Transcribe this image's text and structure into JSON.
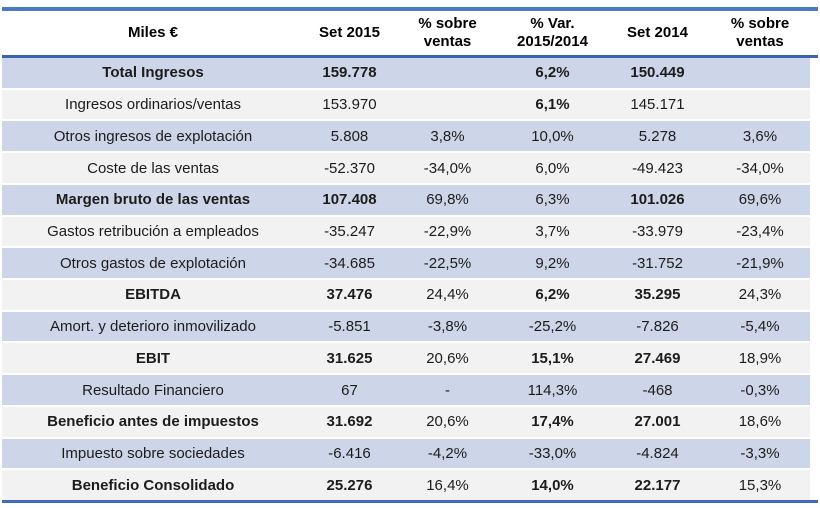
{
  "table": {
    "title_note": "Miles €",
    "columns": [
      "Miles €",
      "Set 2015",
      "% sobre ventas",
      "% Var. 2015/2014",
      "Set 2014",
      "% sobre ventas"
    ],
    "rows": [
      {
        "cells": [
          "Total Ingresos",
          "159.778",
          "",
          "6,2%",
          "150.449",
          ""
        ]
      },
      {
        "cells": [
          "Ingresos ordinarios/ventas",
          "153.970",
          "",
          "6,1%",
          "145.171",
          ""
        ]
      },
      {
        "cells": [
          "Otros ingresos de explotación",
          "5.808",
          "3,8%",
          "10,0%",
          "5.278",
          "3,6%"
        ]
      },
      {
        "cells": [
          "Coste de las ventas",
          "-52.370",
          "-34,0%",
          "6,0%",
          "-49.423",
          "-34,0%"
        ]
      },
      {
        "cells": [
          "Margen bruto de las ventas",
          "107.408",
          "69,8%",
          "6,3%",
          "101.026",
          "69,6%"
        ]
      },
      {
        "cells": [
          "Gastos retribución a empleados",
          "-35.247",
          "-22,9%",
          "3,7%",
          "-33.979",
          "-23,4%"
        ]
      },
      {
        "cells": [
          "Otros gastos de explotación",
          "-34.685",
          "-22,5%",
          "9,2%",
          "-31.752",
          "-21,9%"
        ]
      },
      {
        "cells": [
          "EBITDA",
          "37.476",
          "24,4%",
          "6,2%",
          "35.295",
          "24,3%"
        ]
      },
      {
        "cells": [
          "Amort. y deterioro inmovilizado",
          "-5.851",
          "-3,8%",
          "-25,2%",
          "-7.826",
          "-5,4%"
        ]
      },
      {
        "cells": [
          "EBIT",
          "31.625",
          "20,6%",
          "15,1%",
          "27.469",
          "18,9%"
        ]
      },
      {
        "cells": [
          "Resultado Financiero",
          "67",
          "-",
          "114,3%",
          "-468",
          "-0,3%"
        ]
      },
      {
        "cells": [
          "Beneficio antes de impuestos",
          "31.692",
          "20,6%",
          "17,4%",
          "27.001",
          "18,6%"
        ]
      },
      {
        "cells": [
          "Impuesto sobre sociedades",
          "-6.416",
          "-4,2%",
          "-33,0%",
          "-4.824",
          "-3,3%"
        ]
      },
      {
        "cells": [
          "Beneficio Consolidado",
          "25.276",
          "16,4%",
          "14,0%",
          "22.177",
          "15,3%"
        ]
      }
    ]
  },
  "colors": {
    "row_blue": "#cdd6e8",
    "row_gray": "#f2f2f2",
    "border_blue_top": "#4a79c5",
    "border_blue_header": "#3a63b1",
    "border_blue_bottom": "#3f6bbd",
    "text": "#1c1c1c"
  }
}
